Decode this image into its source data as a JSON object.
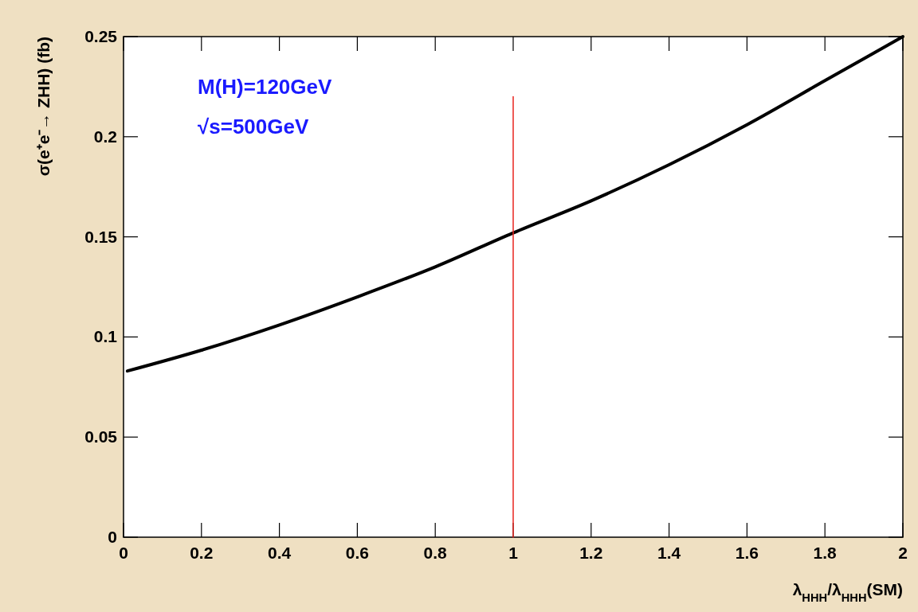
{
  "chart_data": {
    "type": "line",
    "xlabel": "λ$_{HHH}$/λ$_{HHH}$(SM)",
    "ylabel": "σ(e⁺e⁻→ ZHH) (fb)",
    "xlim": [
      0,
      2
    ],
    "ylim": [
      0,
      0.25
    ],
    "xticks": [
      0,
      0.2,
      0.4,
      0.6,
      0.8,
      1,
      1.2,
      1.4,
      1.6,
      1.8,
      2
    ],
    "yticks": [
      0,
      0.05,
      0.1,
      0.15,
      0.2,
      0.25
    ],
    "grid": false,
    "marker": "none",
    "line_style": "solid",
    "annotations": [
      "M(H)=120GeV",
      "√s=500GeV"
    ],
    "series": [
      {
        "color": "#000000",
        "x": [
          0.01,
          0.2,
          0.4,
          0.6,
          0.8,
          1,
          1.2,
          1.4,
          1.6,
          1.8,
          2
        ],
        "values": [
          0.083,
          0.0934,
          0.106,
          0.12,
          0.135,
          0.152,
          0.168,
          0.186,
          0.206,
          0.228,
          0.25
        ]
      },
      {
        "color": "#e8241f",
        "x": [
          1,
          1
        ],
        "values": [
          0,
          0.22
        ]
      }
    ]
  }
}
